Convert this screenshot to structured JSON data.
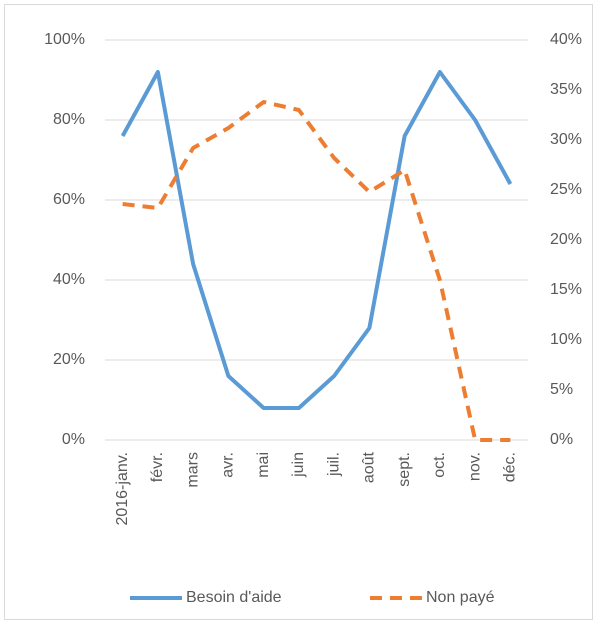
{
  "chart_data": {
    "type": "line",
    "categories": [
      "2016-janv.",
      "févr.",
      "mars",
      "avr.",
      "mai",
      "juin",
      "juil.",
      "août",
      "sept.",
      "oct.",
      "nov.",
      "déc."
    ],
    "series": [
      {
        "name": "Besoin d'aide",
        "color": "#5b9bd5",
        "dash": false,
        "values": [
          76,
          92,
          44,
          16,
          8,
          8,
          16,
          28,
          76,
          92,
          80,
          64
        ]
      },
      {
        "name": "Non payé",
        "color": "#ed7d31",
        "dash": true,
        "axis": "y2",
        "values": [
          23.6,
          23.2,
          29.2,
          31.2,
          33.8,
          33,
          28.2,
          24.8,
          27,
          16,
          0,
          0
        ]
      }
    ],
    "ylim": [
      0,
      100
    ],
    "yticks": [
      {
        "value": 0,
        "label": "0%"
      },
      {
        "value": 20,
        "label": "20%"
      },
      {
        "value": 40,
        "label": "40%"
      },
      {
        "value": 60,
        "label": "60%"
      },
      {
        "value": 80,
        "label": "80%"
      },
      {
        "value": 100,
        "label": "100%"
      }
    ],
    "y2lim": [
      0,
      40
    ],
    "y2ticks": [
      {
        "value": 0,
        "label": "0%"
      },
      {
        "value": 5,
        "label": "5%"
      },
      {
        "value": 10,
        "label": "10%"
      },
      {
        "value": 15,
        "label": "15%"
      },
      {
        "value": 20,
        "label": "20%"
      },
      {
        "value": 25,
        "label": "25%"
      },
      {
        "value": 30,
        "label": "30%"
      },
      {
        "value": 35,
        "label": "35%"
      },
      {
        "value": 40,
        "label": "40%"
      }
    ],
    "grid": true,
    "legend": "bottom"
  }
}
